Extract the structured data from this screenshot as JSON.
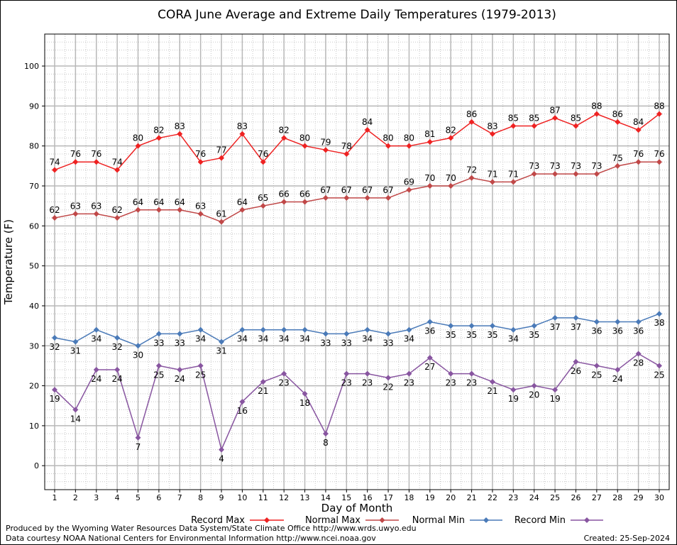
{
  "chart_data": {
    "type": "line",
    "title": "CORA June Average and Extreme Daily Temperatures (1979-2013)",
    "xlabel": "Day of Month",
    "ylabel": "Temperature (F)",
    "ylim": [
      -6,
      108
    ],
    "yticks": [
      0,
      10,
      20,
      30,
      40,
      50,
      60,
      70,
      80,
      90,
      100
    ],
    "grid": true,
    "legend_position": "bottom",
    "x": [
      1,
      2,
      3,
      4,
      5,
      6,
      7,
      8,
      9,
      10,
      11,
      12,
      13,
      14,
      15,
      16,
      17,
      18,
      19,
      20,
      21,
      22,
      23,
      24,
      25,
      26,
      27,
      28,
      29,
      30
    ],
    "series": [
      {
        "name": "Record Max",
        "color": "#ee2222",
        "label_pos": "above",
        "values": [
          74,
          76,
          76,
          74,
          80,
          82,
          83,
          76,
          77,
          83,
          76,
          82,
          80,
          79,
          78,
          84,
          80,
          80,
          81,
          82,
          86,
          83,
          85,
          85,
          87,
          85,
          88,
          86,
          84,
          88
        ]
      },
      {
        "name": "Normal Max",
        "color": "#c04848",
        "label_pos": "above",
        "values": [
          62,
          63,
          63,
          62,
          64,
          64,
          64,
          63,
          61,
          64,
          65,
          66,
          66,
          67,
          67,
          67,
          67,
          69,
          70,
          70,
          72,
          71,
          71,
          73,
          73,
          73,
          73,
          75,
          76,
          76
        ]
      },
      {
        "name": "Normal Min",
        "color": "#4a7ab8",
        "label_pos": "below",
        "values": [
          32,
          31,
          34,
          32,
          30,
          33,
          33,
          34,
          31,
          34,
          34,
          34,
          34,
          33,
          33,
          34,
          33,
          34,
          36,
          35,
          35,
          35,
          34,
          35,
          37,
          37,
          36,
          36,
          36,
          38
        ]
      },
      {
        "name": "Record Min",
        "color": "#8855a0",
        "label_pos": "below",
        "values": [
          19,
          14,
          24,
          24,
          7,
          25,
          24,
          25,
          4,
          16,
          21,
          23,
          18,
          8,
          23,
          23,
          22,
          23,
          27,
          23,
          23,
          21,
          19,
          20,
          19,
          26,
          25,
          24,
          28,
          25
        ]
      }
    ]
  },
  "footer": {
    "produced_by": "Produced by the Wyoming Water Resources Data System/State Climate Office http://www.wrds.uwyo.edu",
    "courtesy": "Data courtesy NOAA National Centers for Environmental Information http://www.ncei.noaa.gov",
    "created": "Created:  25-Sep-2024"
  }
}
